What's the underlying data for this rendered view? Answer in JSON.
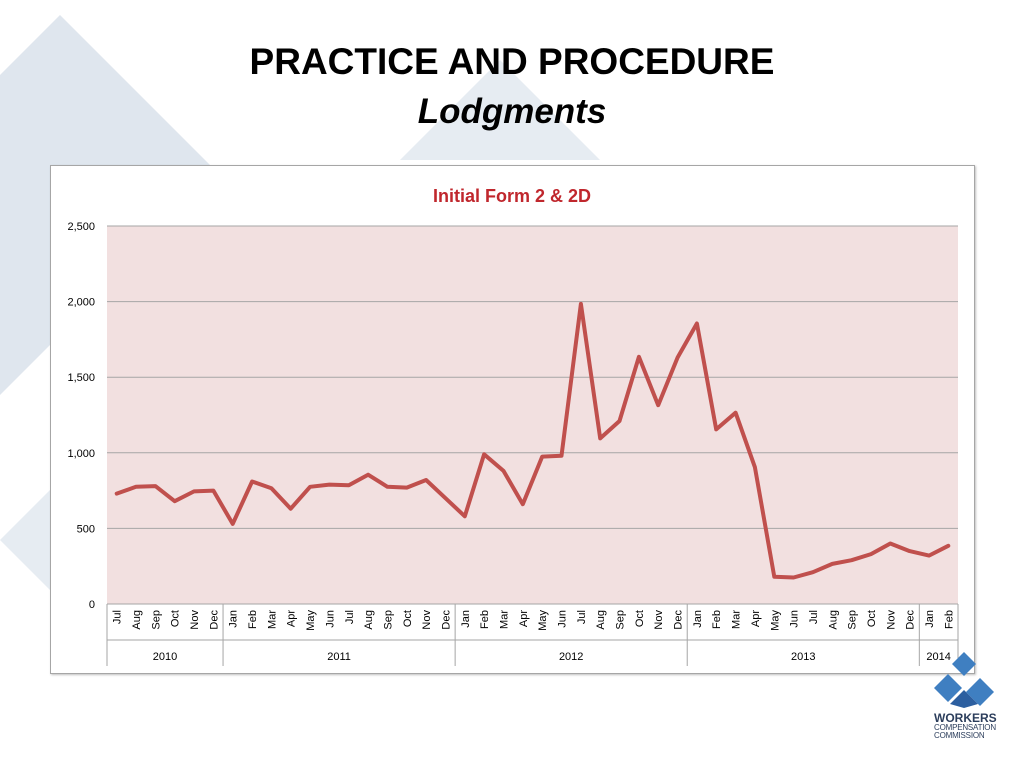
{
  "slide": {
    "title": "PRACTICE AND PROCEDURE",
    "subtitle": "Lodgments"
  },
  "logo": {
    "line1": "WORKERS",
    "line2": "COMPENSATION",
    "line3": "COMMISSION"
  },
  "colors": {
    "line": "#c0504d",
    "plot_background": "#f2e0e0",
    "chart_title": "#c0272d",
    "background_shapes": "#dfe6ee",
    "logo_blue": "#3f7fc1"
  },
  "chart_data": {
    "type": "line",
    "title": "Initial Form 2 & 2D",
    "ylim": [
      0,
      2500
    ],
    "yticks": [
      0,
      500,
      1000,
      1500,
      2000,
      2500
    ],
    "ytick_labels": [
      "0",
      "500",
      "1,000",
      "1,500",
      "2,000",
      "2,500"
    ],
    "grid": true,
    "legend": "none",
    "categories": [
      "Jul",
      "Aug",
      "Sep",
      "Oct",
      "Nov",
      "Dec",
      "Jan",
      "Feb",
      "Mar",
      "Apr",
      "May",
      "Jun",
      "Jul",
      "Aug",
      "Sep",
      "Oct",
      "Nov",
      "Dec",
      "Jan",
      "Feb",
      "Mar",
      "Apr",
      "May",
      "Jun",
      "Jul",
      "Aug",
      "Sep",
      "Oct",
      "Nov",
      "Dec",
      "Jan",
      "Feb",
      "Mar",
      "Apr",
      "May",
      "Jun",
      "Jul",
      "Aug",
      "Sep",
      "Oct",
      "Nov",
      "Dec",
      "Jan",
      "Feb"
    ],
    "year_groups": [
      {
        "label": "2010",
        "count": 6
      },
      {
        "label": "2011",
        "count": 12
      },
      {
        "label": "2012",
        "count": 12
      },
      {
        "label": "2013",
        "count": 12
      },
      {
        "label": "2014",
        "count": 2
      }
    ],
    "values": [
      730,
      775,
      780,
      680,
      745,
      750,
      530,
      810,
      765,
      630,
      775,
      790,
      785,
      855,
      775,
      770,
      820,
      700,
      580,
      990,
      880,
      660,
      975,
      980,
      1985,
      1095,
      1210,
      1635,
      1315,
      1630,
      1855,
      1155,
      1265,
      905,
      180,
      175,
      210,
      265,
      290,
      330,
      400,
      350,
      320,
      385
    ]
  }
}
